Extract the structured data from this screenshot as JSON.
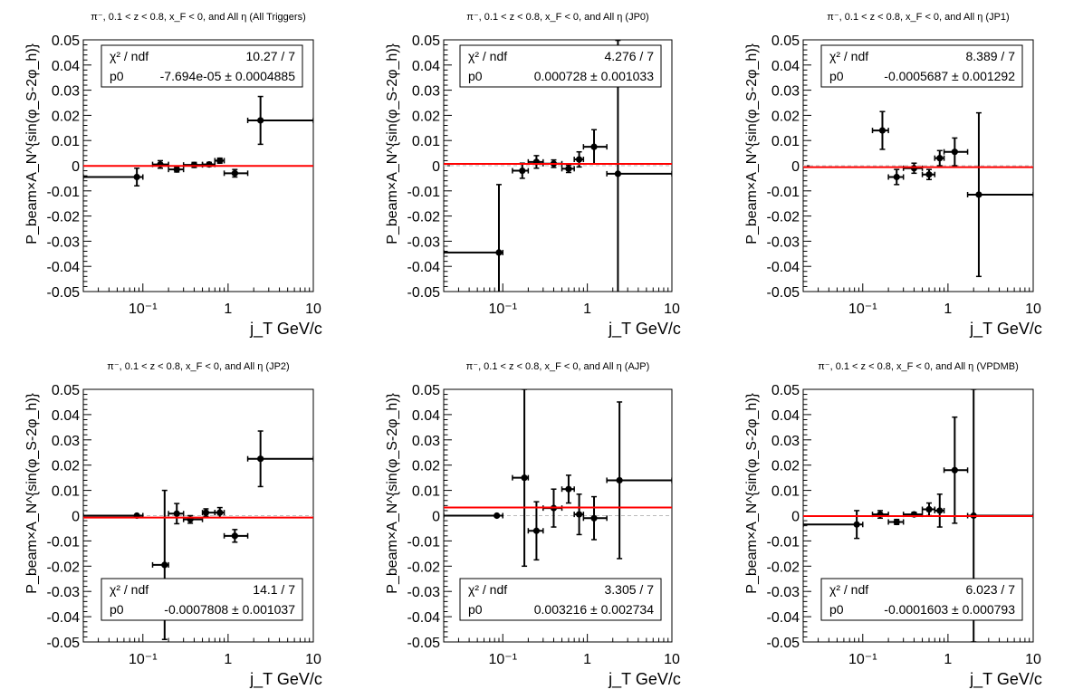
{
  "chart_data": [
    {
      "type": "scatter",
      "title": "π⁻, 0.1 < z < 0.8, x_F < 0, and All η (All Triggers)",
      "xlabel": "j_T GeV/c",
      "ylabel": "P_beam×A_N^{sin(φ_S-2φ_h)}",
      "xscale": "log",
      "xlim": [
        0.02,
        10
      ],
      "ylim": [
        -0.05,
        0.05
      ],
      "yticks": [
        "0.05",
        "0.04",
        "0.03",
        "0.02",
        "0.01",
        "0",
        "-0.01",
        "-0.02",
        "-0.03",
        "-0.04",
        "-0.05"
      ],
      "xticks": [
        "10⁻¹",
        "1",
        "10"
      ],
      "legend_position": "top",
      "fit": {
        "chi2_label": "χ² / ndf",
        "chi2": "10.27 / 7",
        "p0_label": "p0",
        "p0": "-7.694e-05 ± 0.0004885",
        "value": -7.69e-05
      },
      "points": [
        {
          "x": 0.085,
          "y": -0.0045,
          "xlo": 0.02,
          "xhi": 0.1,
          "yerr": 0.0035
        },
        {
          "x": 0.16,
          "y": 0.0005,
          "xlo": 0.13,
          "xhi": 0.2,
          "yerr": 0.0015
        },
        {
          "x": 0.25,
          "y": -0.0015,
          "xlo": 0.2,
          "xhi": 0.3,
          "yerr": 0.001
        },
        {
          "x": 0.4,
          "y": 0.0003,
          "xlo": 0.3,
          "xhi": 0.5,
          "yerr": 0.001
        },
        {
          "x": 0.6,
          "y": 0.0005,
          "xlo": 0.5,
          "xhi": 0.7,
          "yerr": 0.0008
        },
        {
          "x": 0.8,
          "y": 0.002,
          "xlo": 0.7,
          "xhi": 0.9,
          "yerr": 0.001
        },
        {
          "x": 1.2,
          "y": -0.003,
          "xlo": 0.9,
          "xhi": 1.7,
          "yerr": 0.0015
        },
        {
          "x": 2.4,
          "y": 0.018,
          "xlo": 1.7,
          "xhi": 10,
          "yerr": 0.0095
        }
      ]
    },
    {
      "type": "scatter",
      "title": "π⁻, 0.1 < z < 0.8, x_F < 0, and All η (JP0)",
      "xlabel": "j_T GeV/c",
      "ylabel": "P_beam×A_N^{sin(φ_S-2φ_h)}",
      "xscale": "log",
      "xlim": [
        0.02,
        10
      ],
      "ylim": [
        -0.05,
        0.05
      ],
      "yticks": [
        "0.05",
        "0.04",
        "0.03",
        "0.02",
        "0.01",
        "0",
        "-0.01",
        "-0.02",
        "-0.03",
        "-0.04",
        "-0.05"
      ],
      "xticks": [
        "10⁻¹",
        "1",
        "10"
      ],
      "legend_position": "top",
      "fit": {
        "chi2_label": "χ² / ndf",
        "chi2": "4.276 / 7",
        "p0_label": "p0",
        "p0": "0.000728 ± 0.001033",
        "value": 0.000728
      },
      "points": [
        {
          "x": 0.09,
          "y": -0.0345,
          "xlo": 0.02,
          "xhi": 0.1,
          "yerr": 0.027
        },
        {
          "x": 0.17,
          "y": -0.002,
          "xlo": 0.13,
          "xhi": 0.2,
          "yerr": 0.003
        },
        {
          "x": 0.25,
          "y": 0.0015,
          "xlo": 0.2,
          "xhi": 0.3,
          "yerr": 0.0025
        },
        {
          "x": 0.4,
          "y": 0.0008,
          "xlo": 0.3,
          "xhi": 0.5,
          "yerr": 0.0015
        },
        {
          "x": 0.6,
          "y": -0.0012,
          "xlo": 0.5,
          "xhi": 0.7,
          "yerr": 0.0015
        },
        {
          "x": 0.8,
          "y": 0.0025,
          "xlo": 0.7,
          "xhi": 0.9,
          "yerr": 0.003
        },
        {
          "x": 1.2,
          "y": 0.0075,
          "xlo": 0.9,
          "xhi": 1.7,
          "yerr": 0.0068
        },
        {
          "x": 2.3,
          "y": -0.0032,
          "xlo": 1.7,
          "xhi": 10,
          "yerr": 0.053
        }
      ]
    },
    {
      "type": "scatter",
      "title": "π⁻, 0.1 < z < 0.8, x_F < 0, and All η (JP1)",
      "xlabel": "j_T GeV/c",
      "ylabel": "P_beam×A_N^{sin(φ_S-2φ_h)}",
      "xscale": "log",
      "xlim": [
        0.02,
        10
      ],
      "ylim": [
        -0.05,
        0.05
      ],
      "yticks": [
        "0.05",
        "0.04",
        "0.03",
        "0.02",
        "0.01",
        "0",
        "-0.01",
        "-0.02",
        "-0.03",
        "-0.04",
        "-0.05"
      ],
      "xticks": [
        "10⁻¹",
        "1",
        "10"
      ],
      "legend_position": "top",
      "fit": {
        "chi2_label": "χ² / ndf",
        "chi2": "8.389 / 7",
        "p0_label": "p0",
        "p0": "-0.0005687 ± 0.001292",
        "value": -0.000569
      },
      "points": [
        {
          "x": 0.17,
          "y": 0.014,
          "xlo": 0.13,
          "xhi": 0.2,
          "yerr": 0.0075
        },
        {
          "x": 0.25,
          "y": -0.0045,
          "xlo": 0.2,
          "xhi": 0.3,
          "yerr": 0.003
        },
        {
          "x": 0.4,
          "y": -0.001,
          "xlo": 0.3,
          "xhi": 0.5,
          "yerr": 0.002
        },
        {
          "x": 0.6,
          "y": -0.0035,
          "xlo": 0.5,
          "xhi": 0.7,
          "yerr": 0.002
        },
        {
          "x": 0.8,
          "y": 0.003,
          "xlo": 0.7,
          "xhi": 0.9,
          "yerr": 0.003
        },
        {
          "x": 1.2,
          "y": 0.0055,
          "xlo": 0.9,
          "xhi": 1.7,
          "yerr": 0.0055
        },
        {
          "x": 2.3,
          "y": -0.0115,
          "xlo": 1.7,
          "xhi": 10,
          "yerr": 0.0325
        }
      ]
    },
    {
      "type": "scatter",
      "title": "π⁻, 0.1 < z < 0.8, x_F < 0, and All η (JP2)",
      "xlabel": "j_T GeV/c",
      "ylabel": "P_beam×A_N^{sin(φ_S-2φ_h)}",
      "xscale": "log",
      "xlim": [
        0.02,
        10
      ],
      "ylim": [
        -0.05,
        0.05
      ],
      "yticks": [
        "0.05",
        "0.04",
        "0.03",
        "0.02",
        "0.01",
        "0",
        "-0.01",
        "-0.02",
        "-0.03",
        "-0.04",
        "-0.05"
      ],
      "xticks": [
        "10⁻¹",
        "1",
        "10"
      ],
      "legend_position": "bottom",
      "fit": {
        "chi2_label": "χ² / ndf",
        "chi2": "14.1 / 7",
        "p0_label": "p0",
        "p0": "-0.0007808 ± 0.001037",
        "value": -0.000781
      },
      "points": [
        {
          "x": 0.085,
          "y": 0.0,
          "xlo": 0.02,
          "xhi": 0.1,
          "yerr": 0.0
        },
        {
          "x": 0.18,
          "y": -0.0195,
          "xlo": 0.13,
          "xhi": 0.2,
          "yerr": 0.0295
        },
        {
          "x": 0.25,
          "y": 0.0008,
          "xlo": 0.2,
          "xhi": 0.3,
          "yerr": 0.004
        },
        {
          "x": 0.36,
          "y": -0.0015,
          "xlo": 0.3,
          "xhi": 0.5,
          "yerr": 0.0015
        },
        {
          "x": 0.55,
          "y": 0.0012,
          "xlo": 0.5,
          "xhi": 0.7,
          "yerr": 0.0015
        },
        {
          "x": 0.8,
          "y": 0.0012,
          "xlo": 0.7,
          "xhi": 0.9,
          "yerr": 0.002
        },
        {
          "x": 1.2,
          "y": -0.008,
          "xlo": 0.9,
          "xhi": 1.7,
          "yerr": 0.0025
        },
        {
          "x": 2.4,
          "y": 0.0225,
          "xlo": 1.7,
          "xhi": 10,
          "yerr": 0.011
        }
      ]
    },
    {
      "type": "scatter",
      "title": "π⁻, 0.1 < z < 0.8, x_F < 0, and All η (AJP)",
      "xlabel": "j_T GeV/c",
      "ylabel": "P_beam×A_N^{sin(φ_S-2φ_h)}",
      "xscale": "log",
      "xlim": [
        0.02,
        10
      ],
      "ylim": [
        -0.05,
        0.05
      ],
      "yticks": [
        "0.05",
        "0.04",
        "0.03",
        "0.02",
        "0.01",
        "0",
        "-0.01",
        "-0.02",
        "-0.03",
        "-0.04",
        "-0.05"
      ],
      "xticks": [
        "10⁻¹",
        "1",
        "10"
      ],
      "legend_position": "bottom",
      "fit": {
        "chi2_label": "χ² / ndf",
        "chi2": "3.305 / 7",
        "p0_label": "p0",
        "p0": "0.003216 ± 0.002734",
        "value": 0.003216
      },
      "points": [
        {
          "x": 0.085,
          "y": 0.0,
          "xlo": 0.02,
          "xhi": 0.1,
          "yerr": 0.0
        },
        {
          "x": 0.18,
          "y": 0.015,
          "xlo": 0.13,
          "xhi": 0.2,
          "yerr": 0.035
        },
        {
          "x": 0.25,
          "y": -0.006,
          "xlo": 0.2,
          "xhi": 0.3,
          "yerr": 0.0115
        },
        {
          "x": 0.4,
          "y": 0.003,
          "xlo": 0.3,
          "xhi": 0.5,
          "yerr": 0.0075
        },
        {
          "x": 0.6,
          "y": 0.0105,
          "xlo": 0.5,
          "xhi": 0.7,
          "yerr": 0.0055
        },
        {
          "x": 0.8,
          "y": 0.0005,
          "xlo": 0.7,
          "xhi": 0.9,
          "yerr": 0.008
        },
        {
          "x": 1.2,
          "y": -0.001,
          "xlo": 0.9,
          "xhi": 1.7,
          "yerr": 0.0085
        },
        {
          "x": 2.4,
          "y": 0.014,
          "xlo": 1.7,
          "xhi": 10,
          "yerr": 0.031
        }
      ]
    },
    {
      "type": "scatter",
      "title": "π⁻, 0.1 < z < 0.8, x_F < 0, and All η (VPDMB)",
      "xlabel": "j_T GeV/c",
      "ylabel": "P_beam×A_N^{sin(φ_S-2φ_h)}",
      "xscale": "log",
      "xlim": [
        0.02,
        10
      ],
      "ylim": [
        -0.05,
        0.05
      ],
      "yticks": [
        "0.05",
        "0.04",
        "0.03",
        "0.02",
        "0.01",
        "0",
        "-0.01",
        "-0.02",
        "-0.03",
        "-0.04",
        "-0.05"
      ],
      "xticks": [
        "10⁻¹",
        "1",
        "10"
      ],
      "legend_position": "bottom",
      "fit": {
        "chi2_label": "χ² / ndf",
        "chi2": "6.023 / 7",
        "p0_label": "p0",
        "p0": "-0.0001603 ± 0.000793",
        "value": -0.00016
      },
      "points": [
        {
          "x": 0.085,
          "y": -0.0035,
          "xlo": 0.02,
          "xhi": 0.1,
          "yerr": 0.0055
        },
        {
          "x": 0.16,
          "y": 0.0005,
          "xlo": 0.13,
          "xhi": 0.2,
          "yerr": 0.0015
        },
        {
          "x": 0.25,
          "y": -0.0025,
          "xlo": 0.2,
          "xhi": 0.3,
          "yerr": 0.001
        },
        {
          "x": 0.4,
          "y": 0.0005,
          "xlo": 0.3,
          "xhi": 0.5,
          "yerr": 0.0008
        },
        {
          "x": 0.6,
          "y": 0.0025,
          "xlo": 0.5,
          "xhi": 0.7,
          "yerr": 0.0025
        },
        {
          "x": 0.8,
          "y": 0.002,
          "xlo": 0.7,
          "xhi": 0.9,
          "yerr": 0.0065
        },
        {
          "x": 1.2,
          "y": 0.018,
          "xlo": 0.9,
          "xhi": 1.7,
          "yerr": 0.021
        },
        {
          "x": 2.0,
          "y": 0.0,
          "xlo": 1.7,
          "xhi": 10,
          "yerr": 0.05
        }
      ]
    }
  ]
}
